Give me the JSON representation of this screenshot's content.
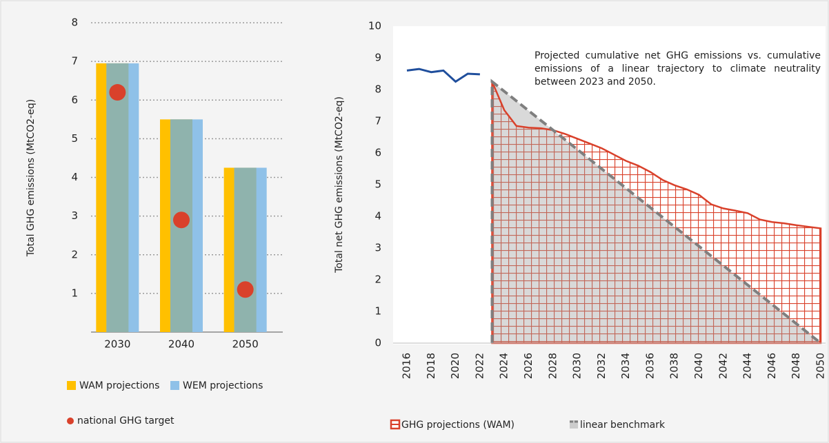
{
  "chart_data": [
    {
      "type": "bar",
      "ylabel": "Total GHG emissions (MtCO2-eq)",
      "categories": [
        "2030",
        "2040",
        "2050"
      ],
      "series": [
        {
          "name": "WAM projections",
          "color": "#ffc000",
          "values": [
            6.95,
            5.5,
            4.25
          ]
        },
        {
          "name": "WEM projections",
          "color": "#8fc1e8",
          "values": [
            6.95,
            5.5,
            4.25
          ]
        }
      ],
      "overlap_color": "#8fb3ad",
      "markers": {
        "name": "national GHG target",
        "color": "#d9412b",
        "values": [
          6.2,
          2.9,
          1.1
        ]
      },
      "ylim": [
        0,
        8
      ],
      "yticks": [
        1,
        2,
        3,
        4,
        5,
        6,
        7,
        8
      ],
      "grid": true
    },
    {
      "type": "line",
      "ylabel": "Total net GHG emissions  (MtCO2-eq)",
      "annotation": "Projected cumulative net GHG emissions vs. cumulative emissions of a linear trajectory to climate neutrality between 2023 and 2050.",
      "series": [
        {
          "color": "#1f4e9c",
          "style": "line",
          "x": [
            2016,
            2017,
            2018,
            2019,
            2020,
            2021,
            2022
          ],
          "values": [
            8.6,
            8.65,
            8.55,
            8.6,
            8.25,
            8.5,
            8.48
          ]
        },
        {
          "name": "GHG projections (WAM)",
          "color": "#d9412b",
          "style": "hatched-area",
          "x": [
            2023,
            2024,
            2025,
            2026,
            2027,
            2028,
            2029,
            2030,
            2031,
            2032,
            2033,
            2034,
            2035,
            2036,
            2037,
            2038,
            2039,
            2040,
            2041,
            2042,
            2043,
            2044,
            2045,
            2046,
            2047,
            2048,
            2049,
            2050
          ],
          "values": [
            8.25,
            7.35,
            6.85,
            6.8,
            6.78,
            6.72,
            6.6,
            6.45,
            6.3,
            6.15,
            5.95,
            5.75,
            5.6,
            5.4,
            5.15,
            4.98,
            4.85,
            4.68,
            4.38,
            4.25,
            4.18,
            4.1,
            3.9,
            3.82,
            3.78,
            3.72,
            3.67,
            3.62
          ]
        },
        {
          "name": "linear benchmark",
          "color": "#7f7f7f",
          "style": "dashed-area",
          "x": [
            2023,
            2050
          ],
          "values": [
            8.25,
            0
          ]
        }
      ],
      "xlim": [
        2016,
        2050
      ],
      "xticks": [
        2016,
        2018,
        2020,
        2022,
        2024,
        2026,
        2028,
        2030,
        2032,
        2034,
        2036,
        2038,
        2040,
        2042,
        2044,
        2046,
        2048,
        2050
      ],
      "ylim": [
        0,
        10
      ],
      "yticks": [
        0,
        1,
        2,
        3,
        4,
        5,
        6,
        7,
        8,
        9,
        10
      ]
    }
  ]
}
